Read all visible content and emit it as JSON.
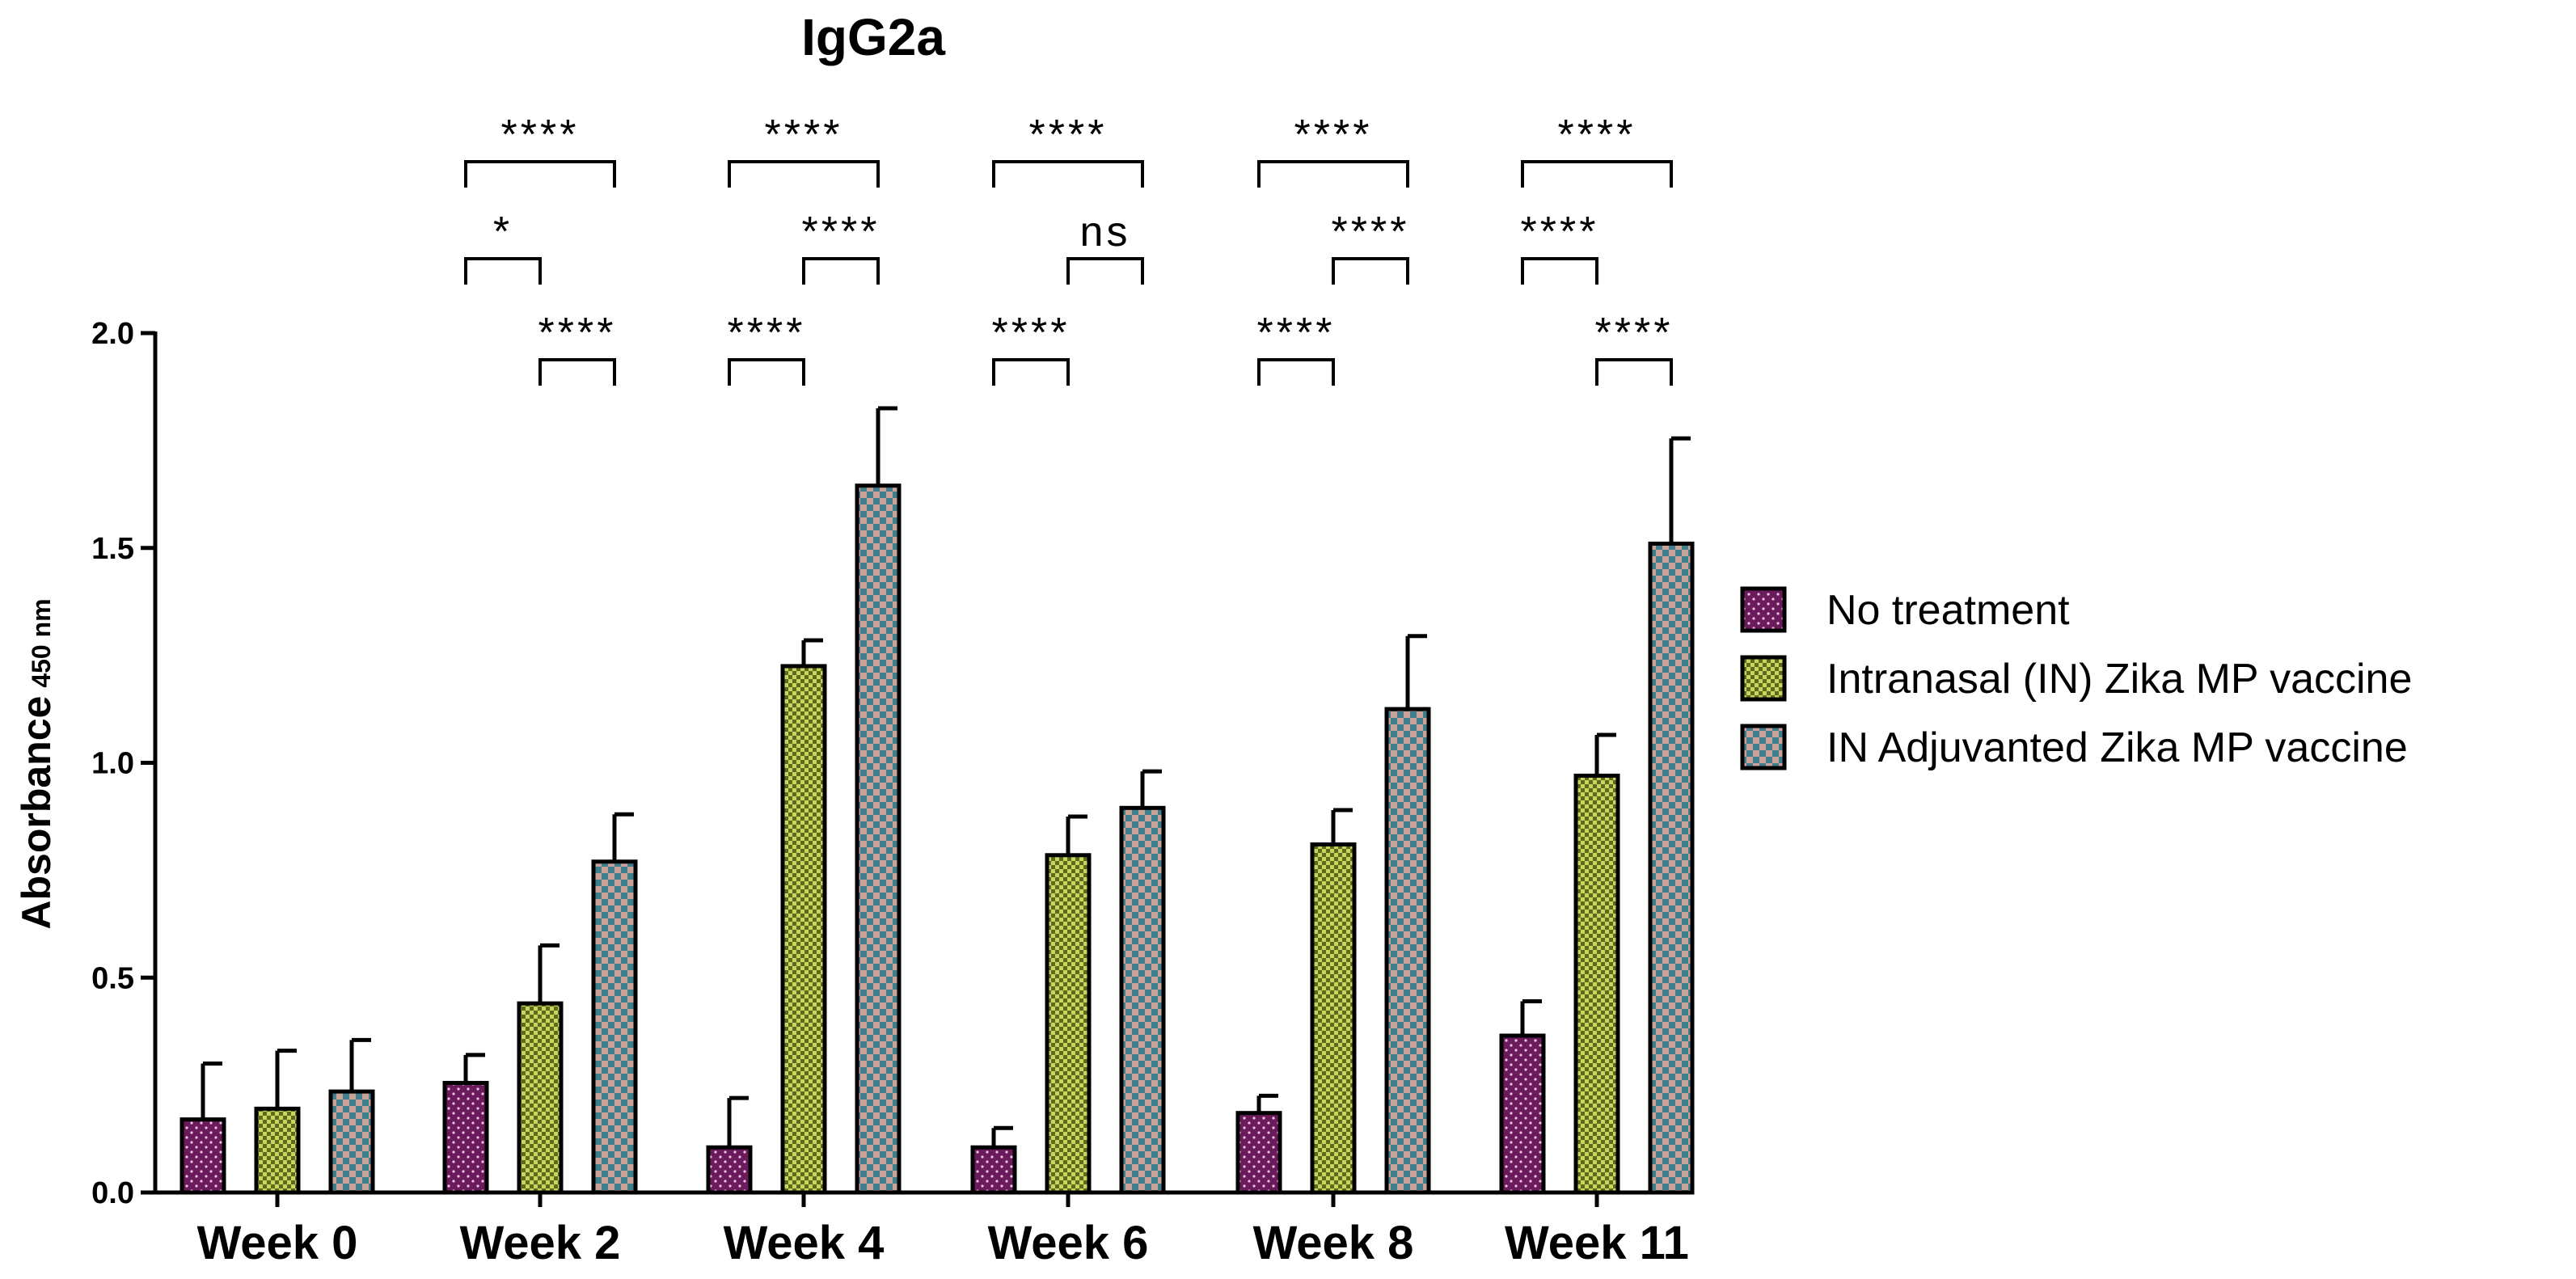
{
  "chart_data": {
    "type": "bar",
    "title": "IgG2a",
    "xlabel": "",
    "ylabel": "Absorbance",
    "ylabel_subscript": "450 nm",
    "ylim": [
      0,
      2.0
    ],
    "yticks": [
      "0.0",
      "0.5",
      "1.0",
      "1.5",
      "2.0"
    ],
    "yticks_values": [
      0,
      0.5,
      1.0,
      1.5,
      2.0
    ],
    "categories": [
      "Week 0",
      "Week 2",
      "Week 4",
      "Week 6",
      "Week 8",
      "Week 11"
    ],
    "series": [
      {
        "name": "No treatment",
        "color": "#6b1a5c",
        "pattern": "dots",
        "values": [
          0.17,
          0.255,
          0.105,
          0.105,
          0.185,
          0.365
        ],
        "errors": [
          0.13,
          0.065,
          0.115,
          0.045,
          0.04,
          0.08
        ]
      },
      {
        "name": "Intranasal (IN) Zika MP vaccine",
        "color": "#8a9a2a",
        "pattern": "checks-small",
        "values": [
          0.195,
          0.44,
          1.225,
          0.785,
          0.81,
          0.97
        ],
        "errors": [
          0.135,
          0.135,
          0.06,
          0.09,
          0.08,
          0.095
        ]
      },
      {
        "name": "IN Adjuvanted Zika MP vaccine",
        "color": "#4e8a92",
        "pattern": "checks-large",
        "values": [
          0.235,
          0.77,
          1.645,
          0.895,
          1.125,
          1.51
        ],
        "errors": [
          0.12,
          0.11,
          0.18,
          0.085,
          0.17,
          0.245
        ]
      }
    ],
    "significance": [
      {
        "category": "Week 2",
        "pairs": [
          {
            "from": 0,
            "to": 2,
            "label": "****"
          },
          {
            "from": 0,
            "to": 1,
            "label": "*"
          },
          {
            "from": 1,
            "to": 2,
            "label": "****"
          }
        ]
      },
      {
        "category": "Week 4",
        "pairs": [
          {
            "from": 0,
            "to": 2,
            "label": "****"
          },
          {
            "from": 1,
            "to": 2,
            "label": "****"
          },
          {
            "from": 0,
            "to": 1,
            "label": "****"
          }
        ]
      },
      {
        "category": "Week 6",
        "pairs": [
          {
            "from": 0,
            "to": 2,
            "label": "****"
          },
          {
            "from": 1,
            "to": 2,
            "label": "ns"
          },
          {
            "from": 0,
            "to": 1,
            "label": "****"
          }
        ]
      },
      {
        "category": "Week 8",
        "pairs": [
          {
            "from": 0,
            "to": 2,
            "label": "****"
          },
          {
            "from": 1,
            "to": 2,
            "label": "****"
          },
          {
            "from": 0,
            "to": 1,
            "label": "****"
          }
        ]
      },
      {
        "category": "Week 11",
        "pairs": [
          {
            "from": 0,
            "to": 2,
            "label": "****"
          },
          {
            "from": 0,
            "to": 1,
            "label": "****"
          },
          {
            "from": 1,
            "to": 2,
            "label": "****"
          }
        ]
      }
    ],
    "legend_position": "right"
  }
}
